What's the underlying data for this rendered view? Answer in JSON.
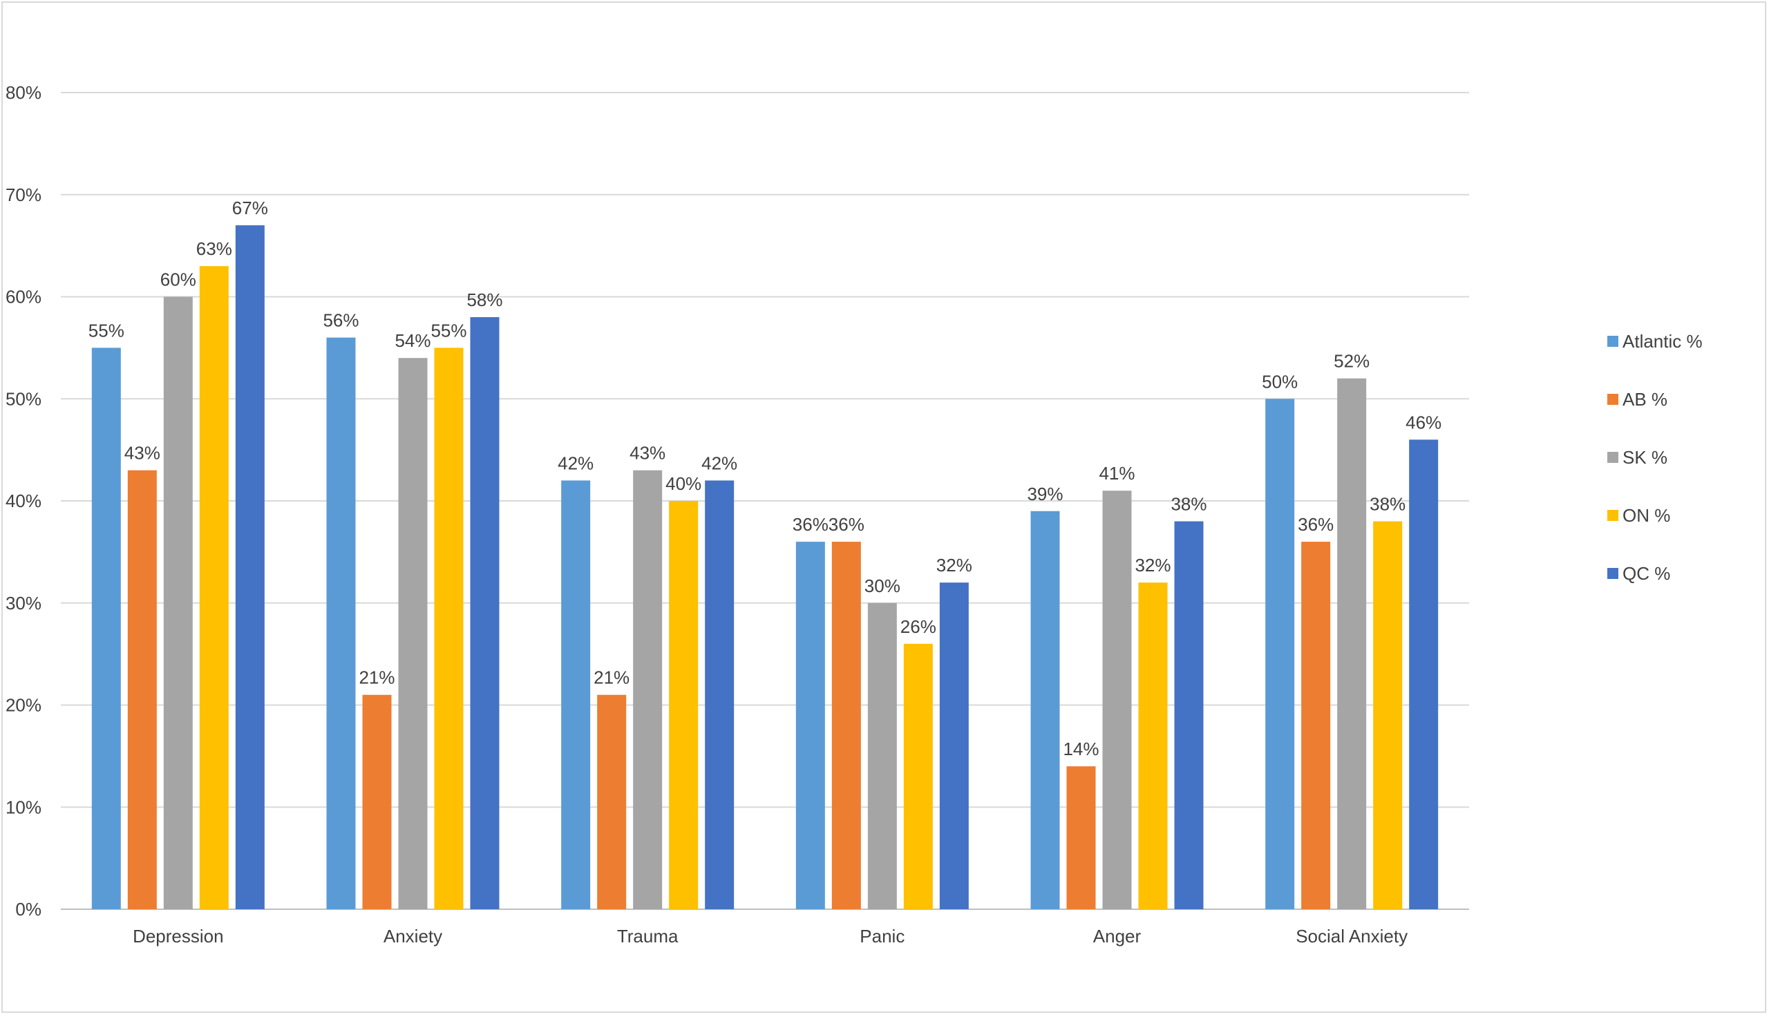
{
  "chart_data": {
    "type": "bar",
    "categories": [
      "Depression",
      "Anxiety",
      "Trauma",
      "Panic",
      "Anger",
      "Social Anxiety"
    ],
    "series": [
      {
        "name": "Atlantic %",
        "color": "#5b9bd5",
        "values": [
          55,
          56,
          42,
          36,
          39,
          50
        ],
        "labels": [
          "55%",
          "56%",
          "42%",
          "36%",
          "39%",
          "50%"
        ]
      },
      {
        "name": "AB %",
        "color": "#ed7d31",
        "values": [
          43,
          21,
          21,
          36,
          14,
          36
        ],
        "labels": [
          "43%",
          "21%",
          "21%",
          "36%",
          "14%",
          "36%"
        ]
      },
      {
        "name": "SK %",
        "color": "#a5a5a5",
        "values": [
          60,
          54,
          43,
          30,
          41,
          52
        ],
        "labels": [
          "60%",
          "54%",
          "43%",
          "30%",
          "41%",
          "52%"
        ]
      },
      {
        "name": "ON %",
        "color": "#ffc000",
        "values": [
          63,
          55,
          40,
          26,
          32,
          38
        ],
        "labels": [
          "63%",
          "55%",
          "40%",
          "26%",
          "32%",
          "38%"
        ]
      },
      {
        "name": "QC %",
        "color": "#4472c4",
        "values": [
          67,
          58,
          42,
          32,
          38,
          46
        ],
        "labels": [
          "67%",
          "58%",
          "42%",
          "32%",
          "38%",
          "46%"
        ]
      }
    ],
    "y_ticks": [
      "0%",
      "10%",
      "20%",
      "30%",
      "40%",
      "50%",
      "60%",
      "70%",
      "80%"
    ],
    "ylim": [
      0,
      80
    ],
    "grid": true,
    "legend_position": "right"
  }
}
